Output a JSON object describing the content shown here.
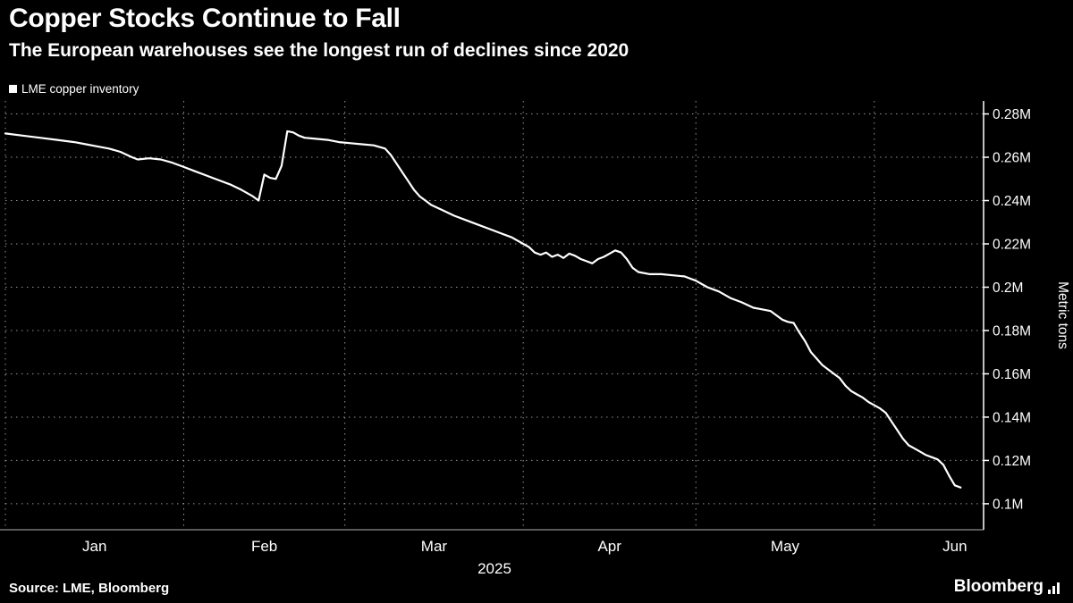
{
  "footer": {
    "source": "Source: LME, Bloomberg",
    "brand": "Bloomberg"
  },
  "colors": {
    "background": "#000000",
    "line": "#ffffff",
    "gridline": "#b0b0b0",
    "axis_right": "#ffffff",
    "axis_bottom": "#777777",
    "text": "#ffffff"
  },
  "chart_data": {
    "type": "line",
    "title": "Copper Stocks Continue to Fall",
    "subtitle": "The European warehouses see the longest run of declines since 2020",
    "unit": "M metric tons",
    "y_label": "Metric tons",
    "x_axis_year": "2025",
    "x_domain_days": [
      0,
      170
    ],
    "x_month_start_days": [
      0,
      31,
      59,
      90,
      120,
      151
    ],
    "x_tick_labels": [
      "Jan",
      "Feb",
      "Mar",
      "Apr",
      "May",
      "Jun"
    ],
    "x_tick_label_days": [
      15.5,
      45,
      74.5,
      105,
      135.5,
      165
    ],
    "y_domain": [
      0.088,
      0.286
    ],
    "y_tick_values": [
      0.28,
      0.26,
      0.24,
      0.22,
      0.2,
      0.18,
      0.16,
      0.14,
      0.12,
      0.1
    ],
    "y_tick_labels": [
      "0.28M",
      "0.26M",
      "0.24M",
      "0.22M",
      "0.2M",
      "0.18M",
      "0.16M",
      "0.14M",
      "0.12M",
      "0.1M"
    ],
    "grid": true,
    "legend_position": "top-left",
    "series": [
      {
        "name": "LME copper inventory",
        "color": "#ffffff",
        "x_days": [
          0,
          3,
          6,
          9,
          12,
          14,
          16,
          18,
          20,
          22,
          23,
          25,
          27,
          29,
          31,
          33,
          35,
          37,
          39,
          41,
          43,
          44,
          45,
          46,
          47,
          48,
          49,
          50,
          51,
          52,
          54,
          56,
          58,
          60,
          62,
          64,
          66,
          67,
          68,
          69,
          70,
          71,
          72,
          73,
          74,
          76,
          78,
          80,
          82,
          84,
          86,
          88,
          90,
          91,
          92,
          93,
          94,
          95,
          96,
          97,
          98,
          99,
          100,
          101,
          102,
          103,
          104,
          105,
          106,
          107,
          108,
          109,
          110,
          112,
          114,
          116,
          118,
          120,
          122,
          124,
          126,
          128,
          130,
          131,
          133,
          135,
          136,
          137,
          138,
          139,
          140,
          141,
          142,
          143,
          144,
          145,
          146,
          147,
          148,
          149,
          150,
          151,
          152,
          153,
          154,
          155,
          156,
          157,
          158,
          159,
          160,
          161,
          162,
          163,
          164,
          165,
          166
        ],
        "values": [
          0.271,
          0.27,
          0.269,
          0.268,
          0.267,
          0.266,
          0.265,
          0.264,
          0.2625,
          0.26,
          0.259,
          0.2595,
          0.259,
          0.2575,
          0.2555,
          0.2535,
          0.2515,
          0.2495,
          0.2475,
          0.245,
          0.242,
          0.24,
          0.252,
          0.2505,
          0.25,
          0.256,
          0.272,
          0.2715,
          0.27,
          0.269,
          0.2685,
          0.268,
          0.267,
          0.2665,
          0.266,
          0.2655,
          0.264,
          0.261,
          0.257,
          0.253,
          0.249,
          0.245,
          0.242,
          0.24,
          0.238,
          0.2355,
          0.233,
          0.231,
          0.229,
          0.227,
          0.225,
          0.223,
          0.22,
          0.2185,
          0.216,
          0.215,
          0.216,
          0.214,
          0.215,
          0.2135,
          0.2155,
          0.2145,
          0.213,
          0.212,
          0.211,
          0.213,
          0.214,
          0.2155,
          0.217,
          0.216,
          0.213,
          0.209,
          0.207,
          0.206,
          0.206,
          0.2055,
          0.205,
          0.203,
          0.2,
          0.198,
          0.195,
          0.193,
          0.1905,
          0.19,
          0.189,
          0.185,
          0.184,
          0.1835,
          0.179,
          0.175,
          0.17,
          0.167,
          0.164,
          0.162,
          0.16,
          0.158,
          0.1545,
          0.152,
          0.1505,
          0.149,
          0.147,
          0.1455,
          0.144,
          0.142,
          0.138,
          0.134,
          0.13,
          0.127,
          0.1255,
          0.124,
          0.1225,
          0.1215,
          0.1205,
          0.118,
          0.113,
          0.1085,
          0.1075
        ]
      }
    ]
  }
}
